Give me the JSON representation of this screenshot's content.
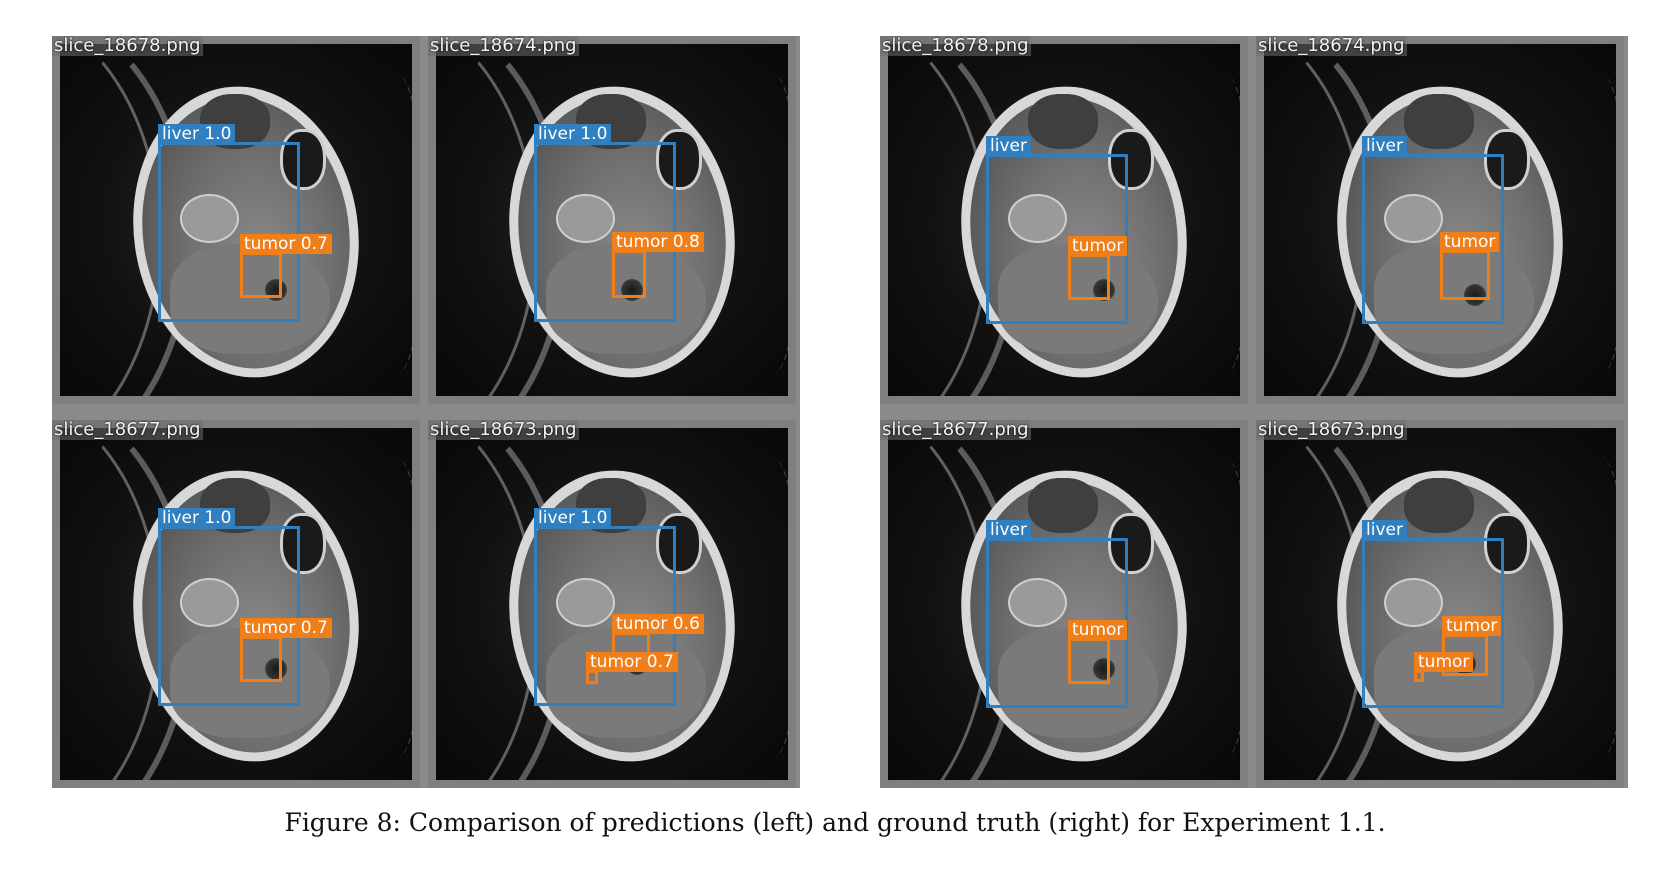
{
  "left_group": {
    "title": "predictions",
    "tiles": [
      {
        "name": "slice_18678.png",
        "liver_label": "liver 1.0",
        "tumor_labels": [
          "tumor 0.7"
        ]
      },
      {
        "name": "slice_18674.png",
        "liver_label": "liver 1.0",
        "tumor_labels": [
          "tumor 0.8"
        ]
      },
      {
        "name": "slice_18677.png",
        "liver_label": "liver 1.0",
        "tumor_labels": [
          "tumor 0.7"
        ]
      },
      {
        "name": "slice_18673.png",
        "liver_label": "liver 1.0",
        "tumor_labels": [
          "tumor 0.6",
          "tumor 0.7"
        ]
      }
    ]
  },
  "right_group": {
    "title": "ground truth",
    "tiles": [
      {
        "name": "slice_18678.png",
        "liver_label": "liver",
        "tumor_labels": [
          "tumor"
        ]
      },
      {
        "name": "slice_18674.png",
        "liver_label": "liver",
        "tumor_labels": [
          "tumor"
        ]
      },
      {
        "name": "slice_18677.png",
        "liver_label": "liver",
        "tumor_labels": [
          "tumor"
        ]
      },
      {
        "name": "slice_18673.png",
        "liver_label": "liver",
        "tumor_labels": [
          "tumor",
          "tumor"
        ]
      }
    ]
  },
  "colors": {
    "liver_box": "#2f7fc1",
    "tumor_box": "#f07f1a"
  },
  "caption": "Figure 8: Comparison of predictions (left) and ground truth (right) for Experiment 1.1."
}
